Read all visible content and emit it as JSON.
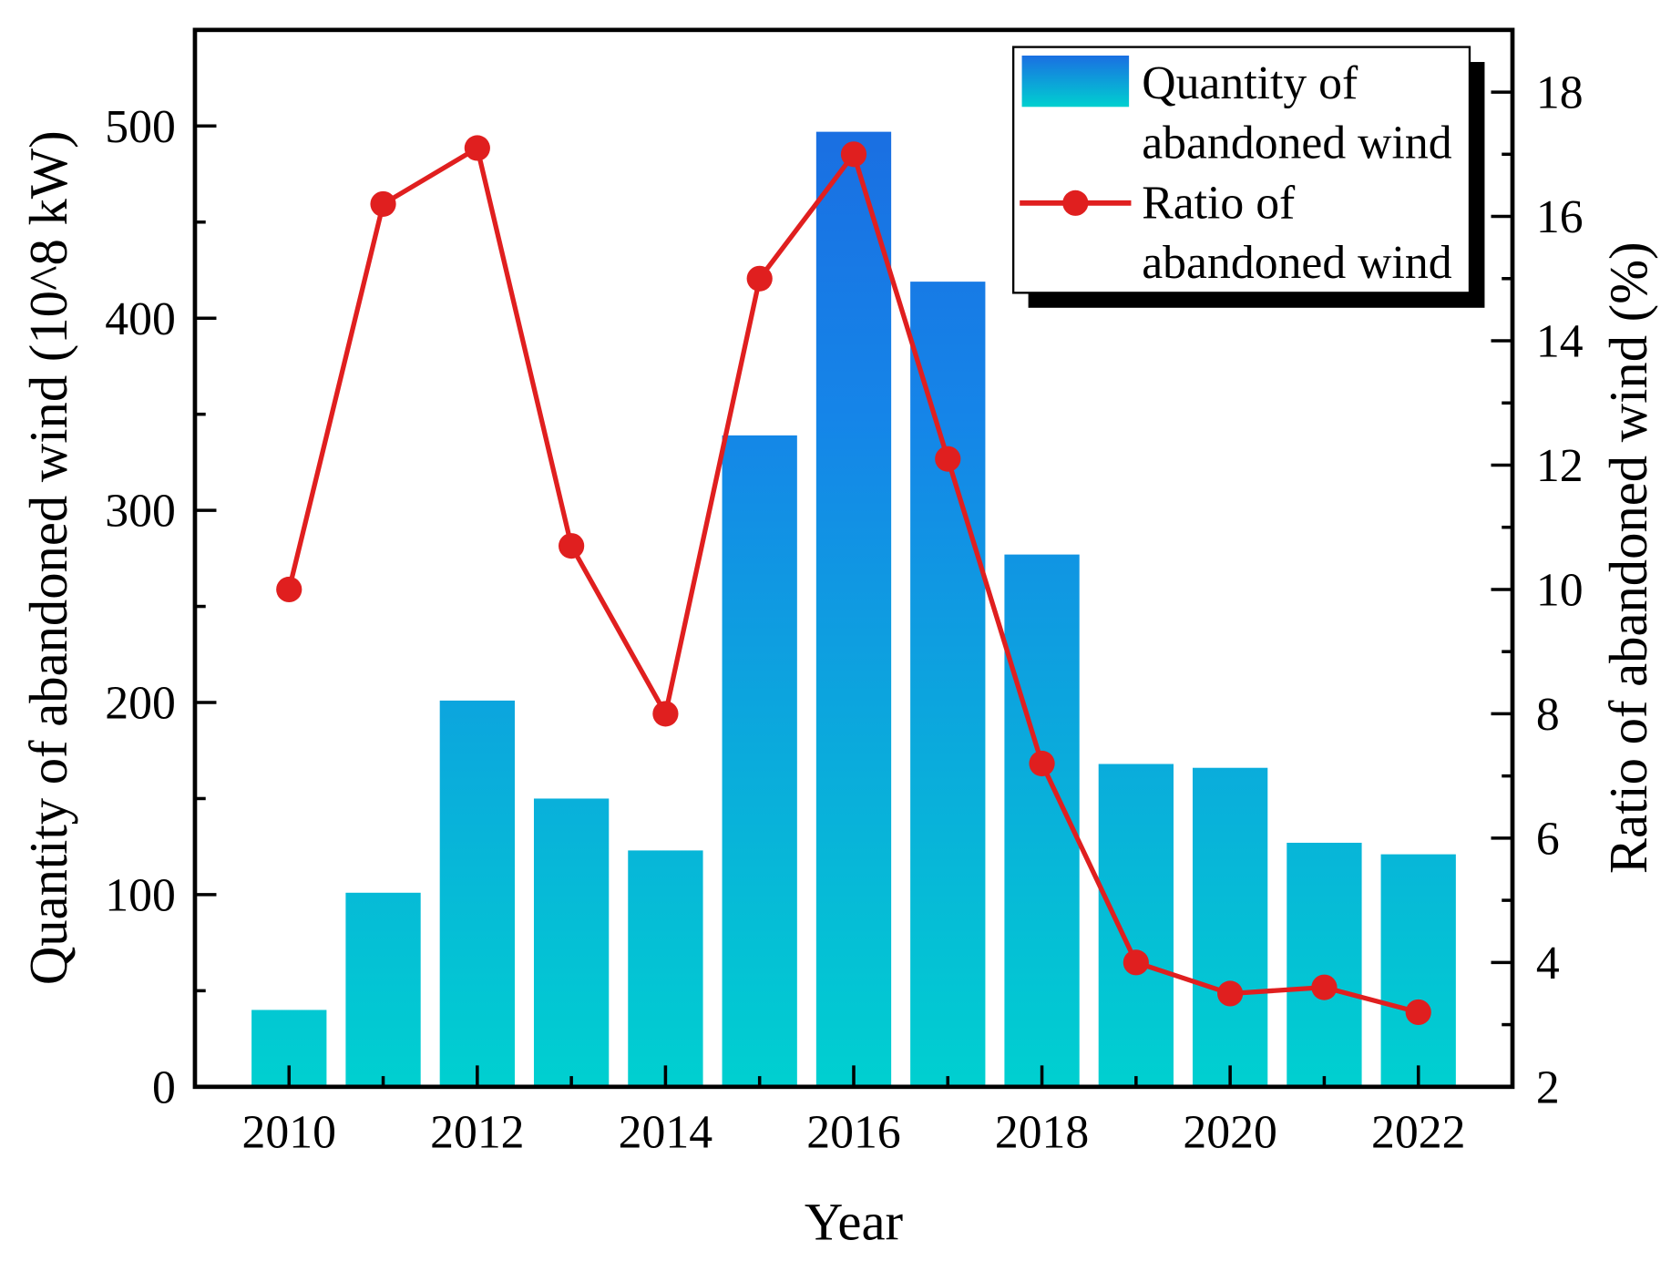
{
  "chart_data": {
    "type": "bar+line",
    "xlabel": "Year",
    "ylabel_left": "Quantity of abandoned wind (10^8 kW)",
    "ylabel_right": "Ratio of abandoned wind (%)",
    "x": [
      2010,
      2011,
      2012,
      2013,
      2014,
      2015,
      2016,
      2017,
      2018,
      2019,
      2020,
      2021,
      2022
    ],
    "x_ticks": [
      "2010",
      "2012",
      "2014",
      "2016",
      "2018",
      "2020",
      "2022"
    ],
    "xlim": [
      2009,
      2023
    ],
    "ylim_left": [
      0,
      550
    ],
    "ylim_right": [
      2,
      19
    ],
    "y_left_ticks": [
      "0",
      "100",
      "200",
      "300",
      "400",
      "500"
    ],
    "y_right_ticks": [
      "2",
      "4",
      "6",
      "8",
      "10",
      "12",
      "14",
      "16",
      "18"
    ],
    "legend_position": "top-right",
    "series": [
      {
        "name": "Quantity of abandoned wind",
        "legend_lines": [
          "Quantity of",
          "abandoned wind"
        ],
        "type": "bar",
        "axis": "left",
        "values": [
          40,
          101,
          201,
          150,
          123,
          339,
          497,
          419,
          277,
          168,
          166,
          127,
          121
        ],
        "color_top": "#1a6fe2",
        "color_bottom": "#00d0d0"
      },
      {
        "name": "Ratio of abandoned wind",
        "legend_lines": [
          "Ratio of",
          "abandoned wind"
        ],
        "type": "line",
        "axis": "right",
        "values": [
          10.0,
          16.2,
          17.1,
          10.7,
          8.0,
          15.0,
          17.0,
          12.1,
          7.2,
          4.0,
          3.5,
          3.6,
          3.2
        ],
        "color": "#e01f1f"
      }
    ]
  }
}
